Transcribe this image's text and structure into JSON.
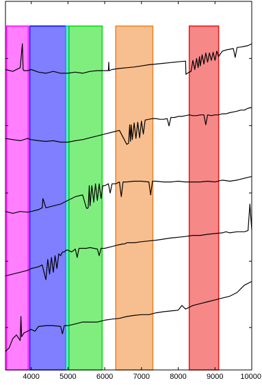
{
  "chart_data": {
    "type": "line",
    "title": "",
    "xlabel": "",
    "ylabel": "",
    "xlim": [
      3300,
      10000
    ],
    "ylim": [
      0,
      1
    ],
    "grid": false,
    "x_ticks": [
      {
        "value": 4000,
        "label": "4000"
      },
      {
        "value": 5000,
        "label": "5000"
      },
      {
        "value": 6000,
        "label": "6000"
      },
      {
        "value": 7000,
        "label": "7000"
      },
      {
        "value": 8000,
        "label": "8000"
      },
      {
        "value": 9000,
        "label": "9000"
      },
      {
        "value": 10000,
        "label": "10000"
      }
    ],
    "y_ticks": [
      0.115,
      0.295,
      0.48,
      0.663,
      0.845
    ],
    "bands": [
      {
        "x0": 3330,
        "x1": 3920,
        "color": "#ff00ff"
      },
      {
        "x0": 3960,
        "x1": 4940,
        "color": "#0000ff"
      },
      {
        "x0": 4940,
        "x1": 5020,
        "color": "#00c0c0"
      },
      {
        "x0": 5030,
        "x1": 5930,
        "color": "#00dd00"
      },
      {
        "x0": 6300,
        "x1": 7310,
        "color": "#f08020"
      },
      {
        "x0": 8300,
        "x1": 9100,
        "color": "#ee1111"
      }
    ],
    "series": [
      {
        "x": [
          3300,
          3500,
          3700,
          3760,
          3780,
          3800,
          3900,
          4000,
          4200,
          4400,
          4600,
          4800,
          5000,
          5200,
          5400,
          5600,
          5800,
          6000,
          6100,
          6110,
          6120,
          6200,
          6400,
          6600,
          6800,
          7000,
          7200,
          7400,
          7600,
          7800,
          8000,
          8200,
          8210,
          8250,
          8300,
          8350,
          8400,
          8450,
          8500,
          8540,
          8580,
          8600,
          8650,
          8700,
          8750,
          8800,
          8850,
          8900,
          8950,
          9000,
          9050,
          9100,
          9200,
          9300,
          9400,
          9500,
          9550,
          9600,
          9700,
          9800,
          9900,
          10000
        ],
        "y": [
          0.815,
          0.81,
          0.82,
          0.885,
          0.815,
          0.812,
          0.812,
          0.815,
          0.808,
          0.805,
          0.81,
          0.805,
          0.805,
          0.808,
          0.805,
          0.81,
          0.812,
          0.812,
          0.812,
          0.835,
          0.812,
          0.815,
          0.818,
          0.82,
          0.822,
          0.825,
          0.828,
          0.83,
          0.832,
          0.834,
          0.836,
          0.838,
          0.802,
          0.805,
          0.808,
          0.81,
          0.84,
          0.815,
          0.845,
          0.82,
          0.85,
          0.825,
          0.855,
          0.83,
          0.86,
          0.835,
          0.86,
          0.84,
          0.862,
          0.84,
          0.865,
          0.85,
          0.865,
          0.868,
          0.87,
          0.872,
          0.848,
          0.875,
          0.876,
          0.878,
          0.88,
          0.885
        ]
      },
      {
        "x": [
          3300,
          3500,
          3700,
          3800,
          3900,
          4000,
          4200,
          4400,
          4600,
          4800,
          5000,
          5200,
          5400,
          5600,
          5800,
          6000,
          6200,
          6400,
          6600,
          6650,
          6680,
          6700,
          6720,
          6750,
          6800,
          6850,
          6900,
          6950,
          7000,
          7050,
          7100,
          7200,
          7300,
          7400,
          7500,
          7600,
          7700,
          7750,
          7800,
          7850,
          7900,
          8000,
          8100,
          8200,
          8300,
          8400,
          8500,
          8600,
          8700,
          8750,
          8800,
          8900,
          9000,
          9100,
          9200,
          9300,
          9400,
          9500,
          9600,
          9700,
          9800,
          9900,
          10000
        ],
        "y": [
          0.628,
          0.625,
          0.622,
          0.625,
          0.628,
          0.625,
          0.622,
          0.62,
          0.622,
          0.618,
          0.618,
          0.622,
          0.625,
          0.63,
          0.635,
          0.64,
          0.645,
          0.65,
          0.612,
          0.615,
          0.665,
          0.62,
          0.665,
          0.625,
          0.67,
          0.628,
          0.672,
          0.63,
          0.675,
          0.64,
          0.678,
          0.68,
          0.682,
          0.682,
          0.68,
          0.68,
          0.682,
          0.662,
          0.685,
          0.685,
          0.685,
          0.688,
          0.688,
          0.69,
          0.692,
          0.69,
          0.69,
          0.692,
          0.692,
          0.665,
          0.692,
          0.69,
          0.692,
          0.692,
          0.695,
          0.695,
          0.698,
          0.7,
          0.702,
          0.705,
          0.705,
          0.71,
          0.712
        ]
      },
      {
        "x": [
          3300,
          3500,
          3700,
          3900,
          4000,
          4200,
          4300,
          4320,
          4400,
          4600,
          4800,
          5000,
          5200,
          5400,
          5500,
          5520,
          5550,
          5580,
          5600,
          5650,
          5700,
          5750,
          5800,
          5850,
          5900,
          5950,
          6000,
          6100,
          6150,
          6200,
          6300,
          6400,
          6450,
          6500,
          6600,
          6800,
          7000,
          7200,
          7250,
          7300,
          7400,
          7600,
          7800,
          8000,
          8200,
          8400,
          8600,
          8800,
          9000,
          9200,
          9400,
          9600,
          9800,
          10000
        ],
        "y": [
          0.43,
          0.425,
          0.43,
          0.428,
          0.43,
          0.435,
          0.44,
          0.465,
          0.44,
          0.445,
          0.45,
          0.46,
          0.47,
          0.475,
          0.44,
          0.438,
          0.44,
          0.5,
          0.445,
          0.5,
          0.455,
          0.505,
          0.46,
          0.505,
          0.465,
          0.5,
          0.5,
          0.505,
          0.48,
          0.505,
          0.505,
          0.51,
          0.47,
          0.51,
          0.51,
          0.512,
          0.512,
          0.51,
          0.475,
          0.512,
          0.512,
          0.51,
          0.51,
          0.512,
          0.51,
          0.51,
          0.51,
          0.512,
          0.51,
          0.515,
          0.512,
          0.515,
          0.52,
          0.525
        ]
      },
      {
        "x": [
          3300,
          3500,
          3700,
          3900,
          4000,
          4200,
          4300,
          4400,
          4450,
          4500,
          4550,
          4600,
          4650,
          4700,
          4750,
          4800,
          4850,
          4900,
          4950,
          5000,
          5100,
          5200,
          5250,
          5300,
          5400,
          5500,
          5600,
          5700,
          5800,
          5850,
          5900,
          6000,
          6200,
          6400,
          6500,
          6550,
          6600,
          6800,
          7000,
          7200,
          7400,
          7600,
          7800,
          8000,
          8200,
          8400,
          8600,
          8800,
          9000,
          9200,
          9300,
          9400,
          9600,
          9800,
          9900,
          9950,
          10000
        ],
        "y": [
          0.255,
          0.26,
          0.265,
          0.27,
          0.275,
          0.28,
          0.285,
          0.245,
          0.3,
          0.26,
          0.305,
          0.265,
          0.31,
          0.275,
          0.315,
          0.31,
          0.32,
          0.32,
          0.325,
          0.325,
          0.32,
          0.328,
          0.305,
          0.33,
          0.33,
          0.33,
          0.332,
          0.33,
          0.328,
          0.31,
          0.33,
          0.33,
          0.335,
          0.34,
          0.342,
          0.342,
          0.345,
          0.345,
          0.348,
          0.35,
          0.352,
          0.355,
          0.358,
          0.36,
          0.362,
          0.365,
          0.365,
          0.368,
          0.37,
          0.372,
          0.375,
          0.372,
          0.375,
          0.375,
          0.378,
          0.45,
          0.38
        ]
      },
      {
        "x": [
          3300,
          3400,
          3500,
          3600,
          3700,
          3720,
          3740,
          3800,
          3900,
          4000,
          4100,
          4200,
          4400,
          4600,
          4800,
          4850,
          4900,
          5000,
          5200,
          5400,
          5600,
          5800,
          6000,
          6200,
          6400,
          6600,
          6800,
          7000,
          7200,
          7400,
          7600,
          7800,
          8000,
          8100,
          8200,
          8300,
          8400,
          8600,
          8800,
          9000,
          9200,
          9400,
          9600,
          9700,
          9800,
          10000
        ],
        "y": [
          0.05,
          0.06,
          0.085,
          0.095,
          0.08,
          0.145,
          0.09,
          0.1,
          0.105,
          0.11,
          0.105,
          0.118,
          0.12,
          0.12,
          0.118,
          0.098,
          0.12,
          0.12,
          0.125,
          0.13,
          0.13,
          0.13,
          0.135,
          0.138,
          0.14,
          0.145,
          0.148,
          0.15,
          0.15,
          0.155,
          0.158,
          0.16,
          0.162,
          0.175,
          0.165,
          0.17,
          0.175,
          0.18,
          0.185,
          0.19,
          0.195,
          0.2,
          0.21,
          0.22,
          0.23,
          0.24
        ]
      }
    ]
  }
}
